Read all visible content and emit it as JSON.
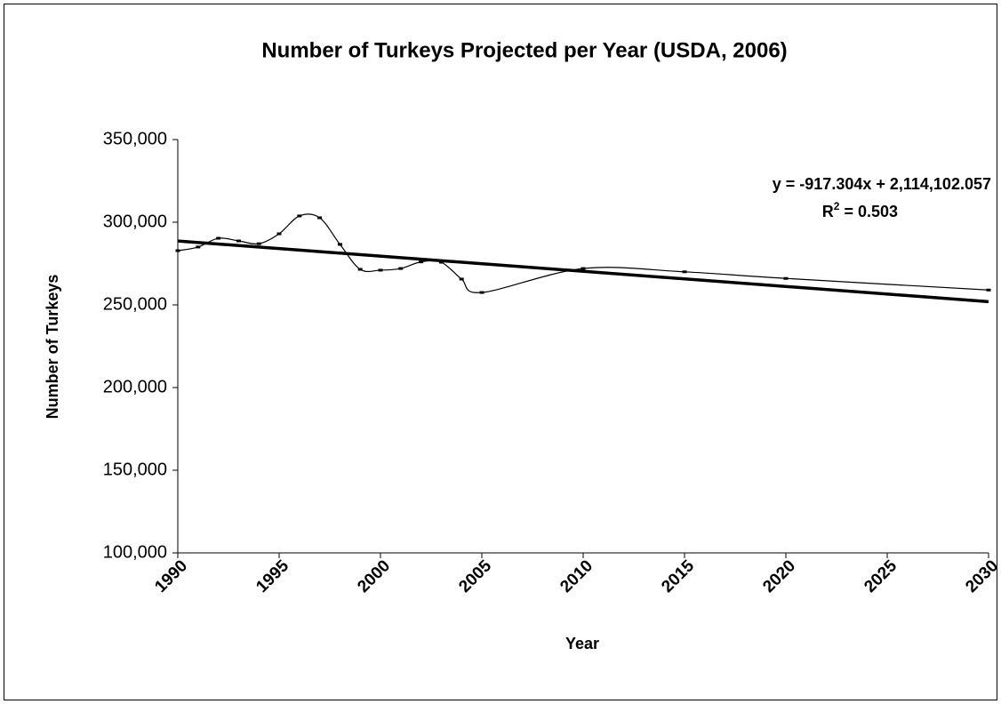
{
  "chart_data": {
    "type": "line",
    "title": "Number of Turkeys Projected per Year (USDA, 2006)",
    "x_label": "Year",
    "y_label": "Number of Turkeys",
    "x": [
      1990,
      1991,
      1992,
      1993,
      1994,
      1995,
      1996,
      1997,
      1998,
      1999,
      2000,
      2001,
      2002,
      2003,
      2004,
      2005,
      2010,
      2015,
      2020,
      2030
    ],
    "series": [
      {
        "color": "#000000",
        "values": [
          282800,
          285000,
          290300,
          288700,
          287000,
          293000,
          303800,
          302700,
          286600,
          271500,
          271000,
          272000,
          276000,
          275800,
          265600,
          257500,
          272000,
          270000,
          266000,
          259000
        ]
      }
    ],
    "trendline": {
      "color": "#000000",
      "x": [
        1990,
        2030
      ],
      "values": [
        288667,
        251975
      ]
    },
    "annotations": {
      "equation": "y = -917.304x + 2,114,102.057",
      "r_squared": {
        "base": "R",
        "sup": "2",
        "rest": " = 0.503"
      }
    },
    "xlim": [
      1990,
      2030
    ],
    "xticks": [
      1990,
      1995,
      2000,
      2005,
      2010,
      2015,
      2020,
      2025,
      2030
    ],
    "ylim": [
      100000,
      350000
    ],
    "yticks": [
      {
        "value": 100000,
        "label": "100,000"
      },
      {
        "value": 150000,
        "label": "150,000"
      },
      {
        "value": 200000,
        "label": "200,000"
      },
      {
        "value": 250000,
        "label": "250,000"
      },
      {
        "value": 300000,
        "label": "300,000"
      },
      {
        "value": 350000,
        "label": "350,000"
      }
    ],
    "grid": false
  }
}
